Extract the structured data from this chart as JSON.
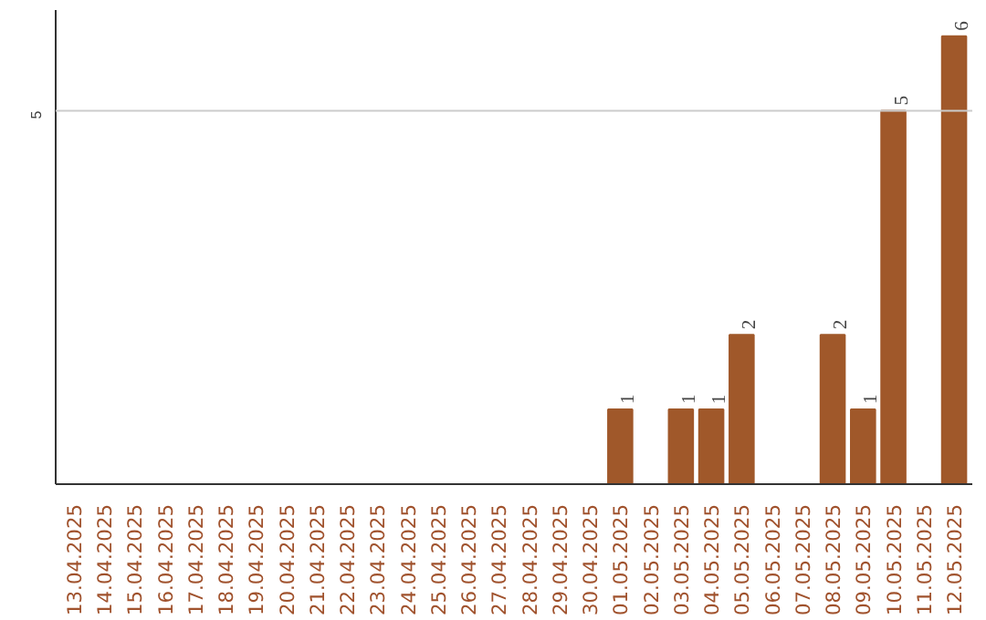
{
  "chart_data": {
    "type": "bar",
    "categories": [
      "13.04.2025",
      "14.04.2025",
      "15.04.2025",
      "16.04.2025",
      "17.04.2025",
      "18.04.2025",
      "19.04.2025",
      "20.04.2025",
      "21.04.2025",
      "22.04.2025",
      "23.04.2025",
      "24.04.2025",
      "25.04.2025",
      "26.04.2025",
      "27.04.2025",
      "28.04.2025",
      "29.04.2025",
      "30.04.2025",
      "01.05.2025",
      "02.05.2025",
      "03.05.2025",
      "04.05.2025",
      "05.05.2025",
      "06.05.2025",
      "07.05.2025",
      "08.05.2025",
      "09.05.2025",
      "10.05.2025",
      "11.05.2025",
      "12.05.2025"
    ],
    "values": [
      null,
      null,
      null,
      null,
      null,
      null,
      null,
      null,
      null,
      null,
      null,
      null,
      null,
      null,
      null,
      null,
      null,
      null,
      1,
      null,
      1,
      1,
      2,
      null,
      null,
      2,
      1,
      5,
      null,
      6
    ],
    "value_labels": [
      null,
      null,
      null,
      null,
      null,
      null,
      null,
      null,
      null,
      null,
      null,
      null,
      null,
      null,
      null,
      null,
      null,
      null,
      "1",
      null,
      "1",
      "1",
      "2",
      null,
      null,
      "2",
      "1",
      "5",
      null,
      "6"
    ],
    "ylim": [
      0,
      6.35
    ],
    "color": "#a0582a",
    "legend": false,
    "ref_lines": [
      {
        "axis": "y",
        "value": 5,
        "label": "5",
        "color": "#cccccc"
      }
    ]
  }
}
